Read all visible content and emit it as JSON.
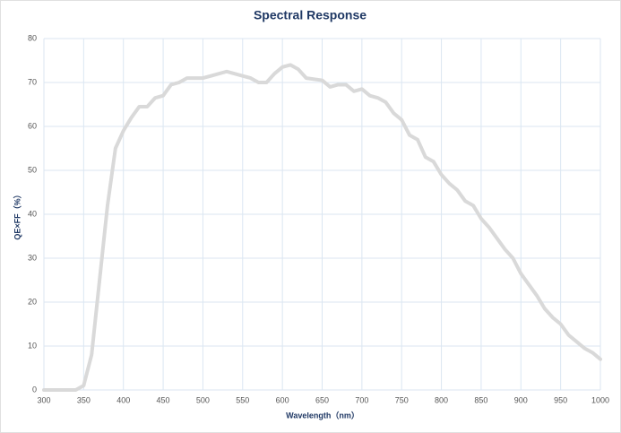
{
  "chart_data": {
    "type": "line",
    "title": "Spectral Response",
    "x_label": "Wavelength（nm）",
    "y_label": "QE×FF（%）",
    "x": [
      300,
      340,
      350,
      360,
      370,
      380,
      390,
      400,
      410,
      420,
      430,
      440,
      450,
      460,
      470,
      480,
      500,
      510,
      530,
      550,
      560,
      570,
      580,
      590,
      600,
      610,
      620,
      630,
      650,
      660,
      670,
      680,
      690,
      700,
      710,
      720,
      730,
      740,
      750,
      760,
      770,
      780,
      790,
      800,
      810,
      820,
      830,
      840,
      850,
      860,
      870,
      880,
      890,
      900,
      910,
      920,
      930,
      940,
      950,
      960,
      970,
      980,
      990,
      1000
    ],
    "series": [
      {
        "name": "QE×FF",
        "color": "#d9d9d9",
        "values": [
          0,
          0,
          1,
          8,
          25,
          42,
          55,
          59,
          62,
          64.5,
          64.5,
          66.5,
          67,
          69.5,
          70,
          71,
          71,
          71.5,
          72.5,
          71.5,
          71,
          70,
          70,
          72,
          73.5,
          74,
          73,
          71,
          70.5,
          69,
          69.5,
          69.5,
          68,
          68.5,
          67,
          66.5,
          65.5,
          63,
          61.5,
          58,
          57,
          53,
          52,
          49,
          47,
          45.5,
          43,
          42,
          39,
          37,
          34.5,
          32,
          30,
          26.5,
          24,
          21.5,
          18.5,
          16.5,
          15,
          12.5,
          11,
          9.5,
          8.5,
          7
        ]
      }
    ],
    "xlim": [
      300,
      1000
    ],
    "xticks": [
      300,
      350,
      400,
      450,
      500,
      550,
      600,
      650,
      700,
      750,
      800,
      850,
      900,
      950,
      1000
    ],
    "ylim": [
      0,
      80
    ],
    "yticks": [
      0,
      10,
      20,
      30,
      40,
      50,
      60,
      70,
      80
    ],
    "grid": true
  }
}
